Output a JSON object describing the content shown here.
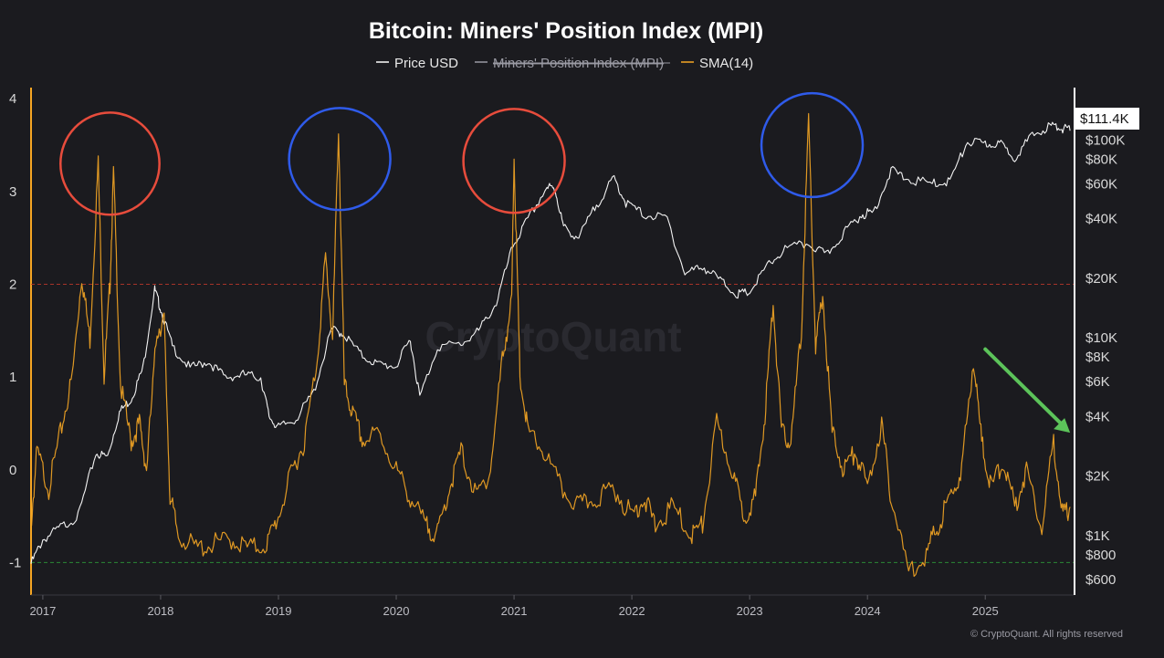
{
  "chart_data": {
    "type": "line",
    "title": "Bitcoin: Miners' Position Index (MPI)",
    "legend": [
      {
        "label": "Price USD",
        "color": "#ffffff",
        "enabled": true
      },
      {
        "label": "Miners' Position Index (MPI)",
        "color": "#9a9aa3",
        "enabled": false
      },
      {
        "label": "SMA(14)",
        "color": "#f5a623",
        "enabled": true
      }
    ],
    "legend_position": "top-center",
    "x_ticks": [
      "2017",
      "2018",
      "2019",
      "2020",
      "2021",
      "2022",
      "2023",
      "2024",
      "2025"
    ],
    "x_range": [
      2016.9,
      2025.75
    ],
    "left_axis": {
      "ticks": [
        "4",
        "3",
        "2",
        "1",
        "0",
        "-1"
      ],
      "range": [
        -1.35,
        4.1
      ]
    },
    "right_axis": {
      "scale": "log",
      "ticks": [
        "$100K",
        "$80K",
        "$60K",
        "$40K",
        "$20K",
        "$10K",
        "$8K",
        "$6K",
        "$4K",
        "$2K",
        "$1K",
        "$800",
        "$600"
      ],
      "range": [
        500,
        180000
      ]
    },
    "reference_lines": [
      {
        "value": 2,
        "color": "#c0392b"
      },
      {
        "value": -1,
        "color": "#2e9e3a"
      }
    ],
    "current_price_label": "$111.4K",
    "series": [
      {
        "name": "Price USD",
        "axis": "right",
        "color": "#ffffff",
        "points": [
          [
            2016.9,
            720
          ],
          [
            2017.0,
            950
          ],
          [
            2017.15,
            1100
          ],
          [
            2017.3,
            1250
          ],
          [
            2017.45,
            2600
          ],
          [
            2017.55,
            2500
          ],
          [
            2017.65,
            4200
          ],
          [
            2017.75,
            4900
          ],
          [
            2017.85,
            7000
          ],
          [
            2017.95,
            17500
          ],
          [
            2018.0,
            14000
          ],
          [
            2018.1,
            9000
          ],
          [
            2018.25,
            7000
          ],
          [
            2018.4,
            7600
          ],
          [
            2018.55,
            6300
          ],
          [
            2018.7,
            6500
          ],
          [
            2018.85,
            6300
          ],
          [
            2018.92,
            4000
          ],
          [
            2019.0,
            3500
          ],
          [
            2019.15,
            3900
          ],
          [
            2019.3,
            5300
          ],
          [
            2019.45,
            11000
          ],
          [
            2019.55,
            10500
          ],
          [
            2019.7,
            8200
          ],
          [
            2019.85,
            7300
          ],
          [
            2020.0,
            7200
          ],
          [
            2020.12,
            9800
          ],
          [
            2020.2,
            5000
          ],
          [
            2020.35,
            9000
          ],
          [
            2020.55,
            9300
          ],
          [
            2020.7,
            10800
          ],
          [
            2020.85,
            15000
          ],
          [
            2020.99,
            29000
          ],
          [
            2021.1,
            38000
          ],
          [
            2021.28,
            58000
          ],
          [
            2021.35,
            56000
          ],
          [
            2021.42,
            36000
          ],
          [
            2021.55,
            32000
          ],
          [
            2021.7,
            47000
          ],
          [
            2021.85,
            64000
          ],
          [
            2021.95,
            48000
          ],
          [
            2022.1,
            42000
          ],
          [
            2022.3,
            40000
          ],
          [
            2022.45,
            21000
          ],
          [
            2022.6,
            23000
          ],
          [
            2022.75,
            19500
          ],
          [
            2022.9,
            16500
          ],
          [
            2023.0,
            17000
          ],
          [
            2023.15,
            23000
          ],
          [
            2023.3,
            28000
          ],
          [
            2023.5,
            30000
          ],
          [
            2023.65,
            26000
          ],
          [
            2023.8,
            34000
          ],
          [
            2023.95,
            42000
          ],
          [
            2024.05,
            43000
          ],
          [
            2024.2,
            70000
          ],
          [
            2024.35,
            63000
          ],
          [
            2024.55,
            60000
          ],
          [
            2024.7,
            62000
          ],
          [
            2024.85,
            98000
          ],
          [
            2025.0,
            95000
          ],
          [
            2025.12,
            96000
          ],
          [
            2025.25,
            82000
          ],
          [
            2025.4,
            105000
          ],
          [
            2025.55,
            118000
          ],
          [
            2025.65,
            115000
          ],
          [
            2025.72,
            111400
          ]
        ]
      },
      {
        "name": "SMA(14)",
        "axis": "left",
        "color": "#f5a623",
        "points": [
          [
            2016.9,
            -0.6
          ],
          [
            2016.95,
            0.2
          ],
          [
            2017.05,
            -0.2
          ],
          [
            2017.15,
            0.4
          ],
          [
            2017.25,
            1.0
          ],
          [
            2017.33,
            2.1
          ],
          [
            2017.4,
            1.4
          ],
          [
            2017.47,
            3.3
          ],
          [
            2017.52,
            1.0
          ],
          [
            2017.57,
            2.0
          ],
          [
            2017.6,
            3.2
          ],
          [
            2017.66,
            0.9
          ],
          [
            2017.75,
            0.3
          ],
          [
            2017.82,
            0.5
          ],
          [
            2017.88,
            0.0
          ],
          [
            2017.97,
            1.5
          ],
          [
            2018.03,
            1.6
          ],
          [
            2018.08,
            -0.3
          ],
          [
            2018.15,
            -0.7
          ],
          [
            2018.3,
            -0.85
          ],
          [
            2018.45,
            -0.8
          ],
          [
            2018.6,
            -0.75
          ],
          [
            2018.75,
            -0.85
          ],
          [
            2018.9,
            -0.8
          ],
          [
            2019.0,
            -0.5
          ],
          [
            2019.12,
            0.0
          ],
          [
            2019.22,
            0.3
          ],
          [
            2019.33,
            1.2
          ],
          [
            2019.4,
            2.3
          ],
          [
            2019.46,
            1.4
          ],
          [
            2019.51,
            3.7
          ],
          [
            2019.56,
            0.9
          ],
          [
            2019.63,
            0.6
          ],
          [
            2019.72,
            0.3
          ],
          [
            2019.85,
            0.4
          ],
          [
            2020.0,
            0.0
          ],
          [
            2020.12,
            -0.3
          ],
          [
            2020.25,
            -0.6
          ],
          [
            2020.35,
            -0.7
          ],
          [
            2020.45,
            -0.2
          ],
          [
            2020.55,
            0.2
          ],
          [
            2020.68,
            -0.3
          ],
          [
            2020.8,
            0.0
          ],
          [
            2020.9,
            1.2
          ],
          [
            2020.98,
            1.8
          ],
          [
            2021.0,
            3.4
          ],
          [
            2021.05,
            1.0
          ],
          [
            2021.12,
            0.4
          ],
          [
            2021.25,
            0.2
          ],
          [
            2021.4,
            -0.2
          ],
          [
            2021.55,
            -0.4
          ],
          [
            2021.7,
            -0.3
          ],
          [
            2021.85,
            -0.2
          ],
          [
            2022.0,
            -0.5
          ],
          [
            2022.1,
            -0.3
          ],
          [
            2022.2,
            -0.6
          ],
          [
            2022.35,
            -0.4
          ],
          [
            2022.5,
            -0.7
          ],
          [
            2022.6,
            -0.6
          ],
          [
            2022.72,
            0.5
          ],
          [
            2022.85,
            0.0
          ],
          [
            2022.95,
            -0.5
          ],
          [
            2023.05,
            -0.3
          ],
          [
            2023.13,
            0.6
          ],
          [
            2023.2,
            1.8
          ],
          [
            2023.27,
            0.4
          ],
          [
            2023.35,
            0.3
          ],
          [
            2023.44,
            1.5
          ],
          [
            2023.5,
            3.8
          ],
          [
            2023.56,
            1.3
          ],
          [
            2023.62,
            1.9
          ],
          [
            2023.7,
            0.4
          ],
          [
            2023.8,
            0.0
          ],
          [
            2023.9,
            0.2
          ],
          [
            2024.0,
            -0.2
          ],
          [
            2024.12,
            0.5
          ],
          [
            2024.2,
            -0.3
          ],
          [
            2024.35,
            -1.1
          ],
          [
            2024.5,
            -0.9
          ],
          [
            2024.6,
            -0.6
          ],
          [
            2024.7,
            -0.3
          ],
          [
            2024.8,
            0.0
          ],
          [
            2024.9,
            1.2
          ],
          [
            2024.97,
            0.3
          ],
          [
            2025.05,
            -0.2
          ],
          [
            2025.15,
            0.1
          ],
          [
            2025.25,
            -0.4
          ],
          [
            2025.35,
            0.0
          ],
          [
            2025.48,
            -0.6
          ],
          [
            2025.58,
            0.3
          ],
          [
            2025.66,
            -0.5
          ],
          [
            2025.72,
            -0.4
          ]
        ]
      }
    ],
    "annotations": [
      {
        "type": "circle",
        "color": "#e74c3c",
        "x": 2017.57,
        "y": 3.3,
        "radius_x_years": 0.42,
        "radius_y_value": 0.55
      },
      {
        "type": "circle",
        "color": "#2f5bea",
        "x": 2019.52,
        "y": 3.35,
        "radius_x_years": 0.43,
        "radius_y_value": 0.55
      },
      {
        "type": "circle",
        "color": "#e74c3c",
        "x": 2021.0,
        "y": 3.33,
        "radius_x_years": 0.43,
        "radius_y_value": 0.56
      },
      {
        "type": "circle",
        "color": "#2f5bea",
        "x": 2023.53,
        "y": 3.5,
        "radius_x_years": 0.43,
        "radius_y_value": 0.56
      },
      {
        "type": "arrow",
        "color": "#5cc35a",
        "from": [
          2025.0,
          1.3
        ],
        "to": [
          2025.72,
          0.4
        ]
      }
    ],
    "watermark": "CryptoQuant",
    "credit": "© CryptoQuant. All rights reserved"
  }
}
